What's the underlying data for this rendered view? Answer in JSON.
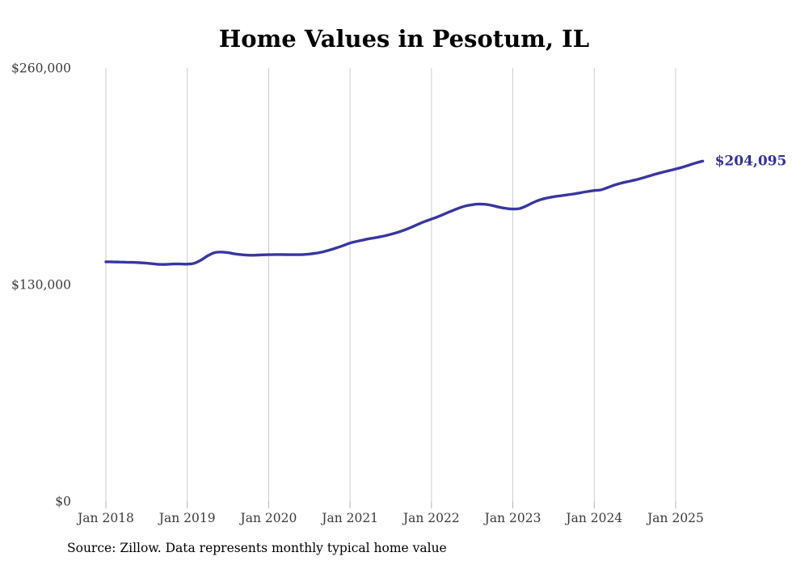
{
  "chart": {
    "title": "Home Values in Pesotum, IL",
    "end_label": "$204,095",
    "source_note": "Source: Zillow. Data represents monthly typical home value",
    "colors": {
      "line": "#38379f",
      "end_label_text": "#32319b",
      "grid": "#cdcdcd",
      "tick": "#b5b5b5",
      "axis_text": "#3b3b3b",
      "title_text": "#0d0d0d",
      "source_text": "#2a2a2a",
      "background": "#ffffff"
    }
  },
  "chart_data": {
    "type": "line",
    "title": "Home Values in Pesotum, IL",
    "series_name": "Monthly typical home value",
    "x_start": "2018-01",
    "x_end": "2025-05",
    "x_interval": "month",
    "x_tick_labels": [
      "Jan 2018",
      "Jan 2019",
      "Jan 2020",
      "Jan 2021",
      "Jan 2022",
      "Jan 2023",
      "Jan 2024",
      "Jan 2025"
    ],
    "y_ticks": [
      0,
      130000,
      260000
    ],
    "y_tick_labels": [
      "$0",
      "$130,000",
      "$260,000"
    ],
    "ylim": [
      0,
      260000
    ],
    "grid": "vertical-only",
    "legend": "none",
    "end_value": 204095,
    "end_value_label": "$204,095",
    "values": [
      143600,
      143600,
      143500,
      143400,
      143300,
      143100,
      142800,
      142400,
      142100,
      142100,
      142300,
      142300,
      142200,
      142700,
      144600,
      147200,
      149100,
      149500,
      149100,
      148400,
      147900,
      147600,
      147600,
      147800,
      147900,
      148000,
      148000,
      147900,
      147900,
      148000,
      148300,
      148800,
      149600,
      150700,
      152000,
      153400,
      154900,
      155900,
      156800,
      157600,
      158300,
      159100,
      160100,
      161300,
      162700,
      164300,
      166100,
      167800,
      169300,
      170800,
      172500,
      174200,
      175800,
      177100,
      177900,
      178300,
      178100,
      177400,
      176400,
      175700,
      175300,
      175600,
      177200,
      179200,
      180800,
      181900,
      182700,
      183200,
      183800,
      184400,
      185100,
      185800,
      186400,
      186800,
      188200,
      189700,
      190900,
      191800,
      192700,
      193800,
      195000,
      196200,
      197300,
      198300,
      199300,
      200400,
      201700,
      203000,
      204095
    ]
  }
}
